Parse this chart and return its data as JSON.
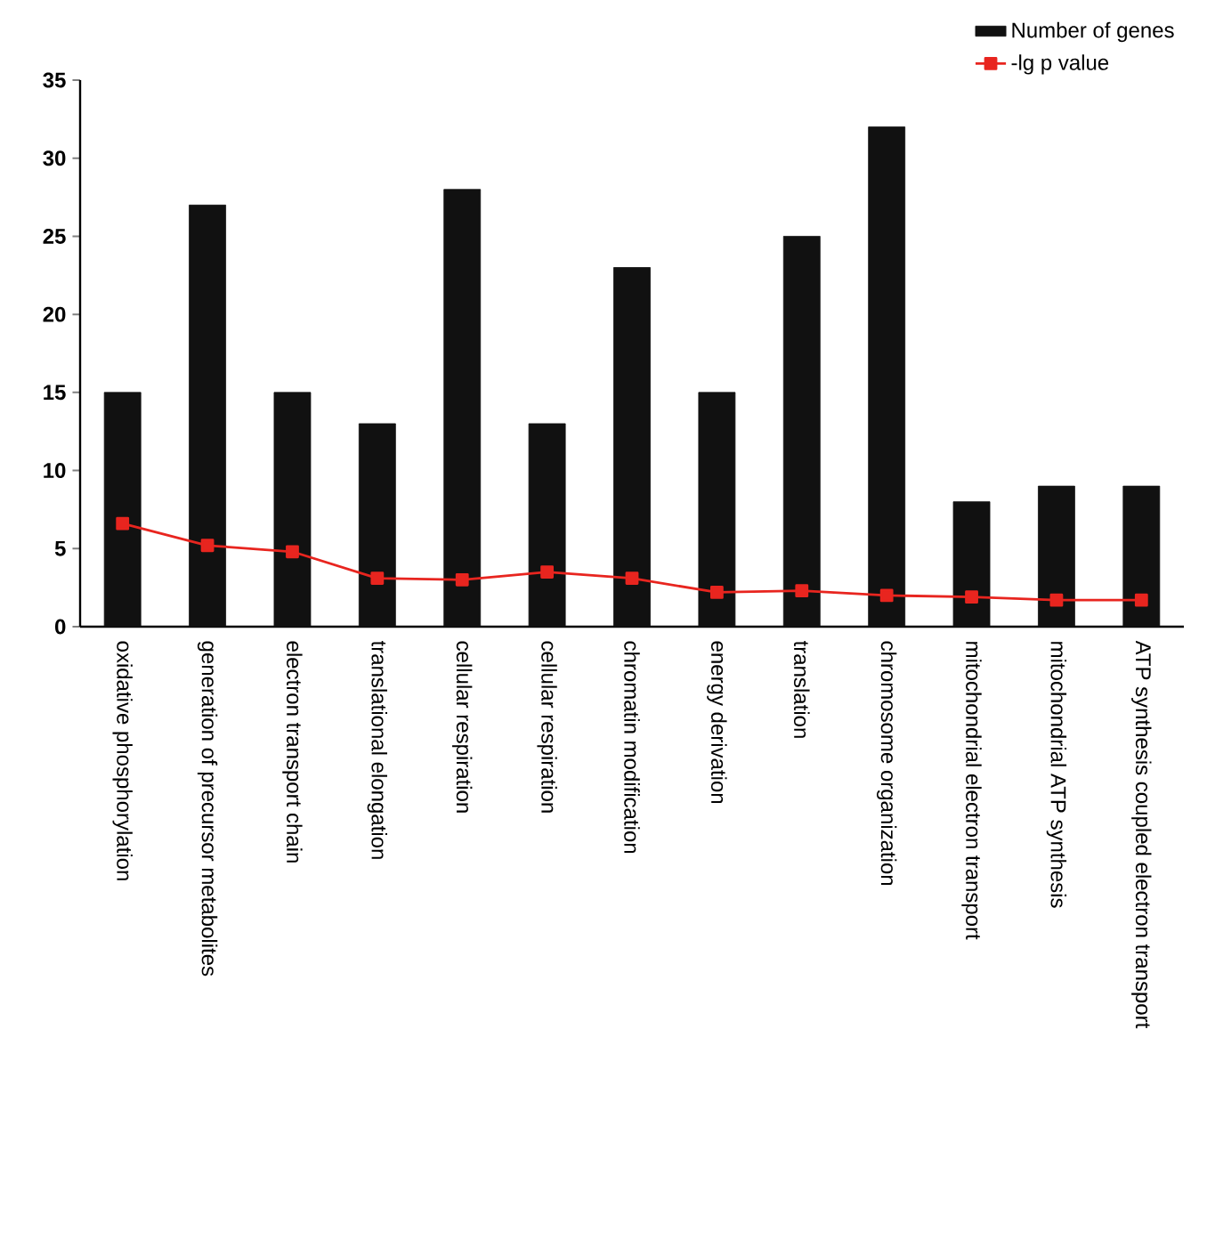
{
  "chart_data": {
    "type": "bar",
    "categories": [
      "oxidative phosphorylation",
      "generation of precursor metabolites",
      "electron transport chain",
      "translational elongation",
      "cellular respiration",
      "cellular respiration",
      "chromatin modification",
      "energy derivation",
      "translation",
      "chromosome organization",
      "mitochondrial electron transport",
      "mitochondrial ATP synthesis",
      "ATP synthesis coupled electron transport"
    ],
    "series": [
      {
        "name": "Number of genes",
        "color": "#111111",
        "values": [
          15,
          27,
          15,
          13,
          28,
          13,
          23,
          15,
          25,
          32,
          8,
          9,
          9
        ]
      },
      {
        "name": "-lg p value",
        "type": "line",
        "color": "#e8251f",
        "marker": "square",
        "values": [
          6.6,
          5.2,
          4.8,
          3.1,
          3.0,
          3.5,
          3.1,
          2.2,
          2.3,
          2.0,
          1.9,
          1.7,
          1.7
        ]
      }
    ],
    "ylim": [
      0,
      35
    ],
    "yticks": [
      0,
      5,
      10,
      15,
      20,
      25,
      30,
      35
    ],
    "grid": false,
    "legend": "top right"
  }
}
